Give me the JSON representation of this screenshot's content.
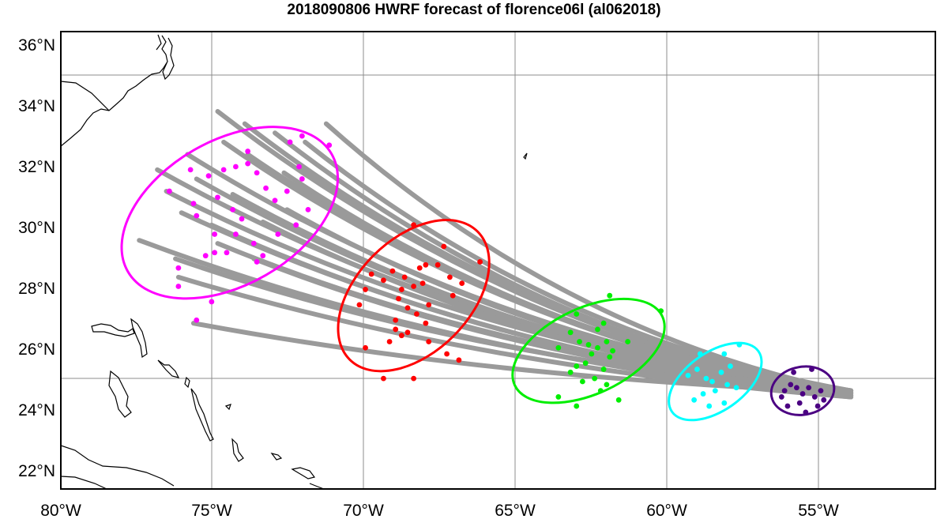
{
  "title": "2018090806 HWRF forecast of florence06l (al062018)",
  "colors": {
    "track": "#9a9a9a",
    "coast": "#000000",
    "grid": "#8c8c8c",
    "groups": [
      "#ff00ff",
      "#ff0000",
      "#00ee00",
      "#00ffff",
      "#4b0082"
    ]
  },
  "chart_data": {
    "type": "scatter",
    "title": "2018090806 HWRF forecast of florence06l (al062018)",
    "x_ticks": [
      "80°W",
      "75°W",
      "70°W",
      "65°W",
      "60°W",
      "55°W"
    ],
    "y_ticks": [
      "36°N",
      "34°N",
      "32°N",
      "30°N",
      "28°N",
      "26°N",
      "24°N",
      "22°N"
    ],
    "xlim": [
      -80,
      -51
    ],
    "ylim": [
      21.6,
      36.5
    ],
    "grid": true,
    "tracks_origin": [
      -53.8,
      24.7
    ],
    "track_ends": [
      [
        -76.5,
        31.3
      ],
      [
        -75.8,
        32.5
      ],
      [
        -74.8,
        33.9
      ],
      [
        -73.9,
        33.5
      ],
      [
        -72.9,
        33.2
      ],
      [
        -71.9,
        32.9
      ],
      [
        -71.2,
        33.5
      ],
      [
        -75.5,
        31.7
      ],
      [
        -76.0,
        30.6
      ],
      [
        -77.4,
        29.7
      ],
      [
        -76.2,
        29.1
      ],
      [
        -75.6,
        27.0
      ],
      [
        -76.8,
        32.0
      ],
      [
        -74.3,
        31.2
      ],
      [
        -73.3,
        30.3
      ],
      [
        -72.5,
        30.7
      ],
      [
        -74.8,
        29.6
      ],
      [
        -73.6,
        29.1
      ],
      [
        -75.0,
        30.2
      ],
      [
        -76.1,
        28.5
      ],
      [
        -72.1,
        32.1
      ],
      [
        -73.8,
        32.5
      ],
      [
        -72.6,
        31.9
      ],
      [
        -74.6,
        32.9
      ]
    ],
    "groups": [
      {
        "center": [
          -74.4,
          30.6
        ],
        "rx_deg": 3.9,
        "ry_deg": 2.35,
        "angle": -30,
        "points": [
          [
            -76.4,
            31.3
          ],
          [
            -75.7,
            32.0
          ],
          [
            -75.1,
            31.8
          ],
          [
            -75.6,
            30.9
          ],
          [
            -75.5,
            30.5
          ],
          [
            -74.8,
            31.1
          ],
          [
            -74.6,
            32.0
          ],
          [
            -74.2,
            32.1
          ],
          [
            -73.8,
            32.2
          ],
          [
            -73.5,
            31.9
          ],
          [
            -73.2,
            31.4
          ],
          [
            -72.9,
            31.0
          ],
          [
            -72.5,
            31.3
          ],
          [
            -72.1,
            32.1
          ],
          [
            -72.0,
            31.7
          ],
          [
            -71.8,
            30.7
          ],
          [
            -72.2,
            30.2
          ],
          [
            -72.8,
            29.9
          ],
          [
            -73.6,
            29.6
          ],
          [
            -73.3,
            29.2
          ],
          [
            -73.5,
            29.0
          ],
          [
            -74.2,
            29.9
          ],
          [
            -74.0,
            30.4
          ],
          [
            -74.5,
            29.3
          ],
          [
            -74.9,
            29.3
          ],
          [
            -75.2,
            29.2
          ],
          [
            -76.1,
            28.8
          ],
          [
            -76.1,
            28.2
          ],
          [
            -75.5,
            27.1
          ],
          [
            -75.0,
            27.7
          ],
          [
            -74.3,
            30.7
          ],
          [
            -74.9,
            29.9
          ],
          [
            -72.4,
            32.9
          ],
          [
            -73.8,
            32.6
          ],
          [
            -72.0,
            33.1
          ],
          [
            -71.1,
            32.8
          ]
        ]
      },
      {
        "center": [
          -68.3,
          27.9
        ],
        "rx_deg": 3.0,
        "ry_deg": 1.85,
        "angle": -45,
        "points": [
          [
            -69.9,
            28.1
          ],
          [
            -69.7,
            28.6
          ],
          [
            -69.3,
            28.4
          ],
          [
            -69.0,
            28.7
          ],
          [
            -68.6,
            28.5
          ],
          [
            -68.7,
            28.1
          ],
          [
            -68.3,
            28.2
          ],
          [
            -68.0,
            28.3
          ],
          [
            -68.1,
            28.8
          ],
          [
            -67.9,
            28.9
          ],
          [
            -67.5,
            28.9
          ],
          [
            -67.1,
            28.5
          ],
          [
            -67.0,
            27.9
          ],
          [
            -66.7,
            28.3
          ],
          [
            -67.3,
            29.5
          ],
          [
            -68.3,
            30.2
          ],
          [
            -66.1,
            29.0
          ],
          [
            -68.8,
            27.8
          ],
          [
            -68.5,
            27.5
          ],
          [
            -68.2,
            27.3
          ],
          [
            -67.8,
            27.6
          ],
          [
            -67.9,
            27.0
          ],
          [
            -68.9,
            26.8
          ],
          [
            -68.7,
            26.6
          ],
          [
            -68.5,
            26.7
          ],
          [
            -69.9,
            26.2
          ],
          [
            -69.1,
            26.4
          ],
          [
            -67.8,
            26.4
          ],
          [
            -67.2,
            26.0
          ],
          [
            -66.8,
            25.8
          ],
          [
            -69.3,
            25.2
          ],
          [
            -68.3,
            25.2
          ],
          [
            -68.9,
            27.1
          ],
          [
            -70.1,
            27.6
          ]
        ]
      },
      {
        "center": [
          -62.5,
          26.1
        ],
        "rx_deg": 2.7,
        "ry_deg": 1.4,
        "angle": -25,
        "points": [
          [
            -63.5,
            26.2
          ],
          [
            -63.1,
            26.7
          ],
          [
            -62.8,
            26.4
          ],
          [
            -62.5,
            26.3
          ],
          [
            -62.2,
            26.2
          ],
          [
            -61.9,
            26.4
          ],
          [
            -61.7,
            26.1
          ],
          [
            -62.4,
            26.0
          ],
          [
            -62.9,
            25.6
          ],
          [
            -62.6,
            25.7
          ],
          [
            -62.0,
            25.5
          ],
          [
            -61.8,
            25.9
          ],
          [
            -63.1,
            25.4
          ],
          [
            -62.7,
            25.1
          ],
          [
            -62.3,
            25.2
          ],
          [
            -61.9,
            25.0
          ],
          [
            -63.5,
            24.6
          ],
          [
            -62.9,
            24.3
          ],
          [
            -62.1,
            24.8
          ],
          [
            -61.5,
            24.5
          ],
          [
            -62.9,
            27.3
          ],
          [
            -62.2,
            26.8
          ],
          [
            -62.0,
            27.0
          ],
          [
            -61.8,
            27.9
          ],
          [
            -60.1,
            27.4
          ],
          [
            -61.2,
            26.4
          ]
        ]
      },
      {
        "center": [
          -58.3,
          25.1
        ],
        "rx_deg": 1.75,
        "ry_deg": 0.95,
        "angle": -35,
        "points": [
          [
            -59.2,
            25.3
          ],
          [
            -58.9,
            25.5
          ],
          [
            -58.6,
            25.2
          ],
          [
            -58.4,
            25.1
          ],
          [
            -58.1,
            25.4
          ],
          [
            -57.9,
            25.0
          ],
          [
            -57.8,
            25.6
          ],
          [
            -58.3,
            24.8
          ],
          [
            -58.7,
            24.7
          ],
          [
            -59.0,
            24.5
          ],
          [
            -58.5,
            24.3
          ],
          [
            -58.0,
            24.4
          ],
          [
            -57.6,
            24.9
          ],
          [
            -57.5,
            26.3
          ],
          [
            -58.0,
            26.0
          ],
          [
            -58.8,
            26.0
          ]
        ]
      },
      {
        "center": [
          -55.4,
          24.8
        ],
        "rx_deg": 1.05,
        "ry_deg": 0.78,
        "angle": -10,
        "points": [
          [
            -56.0,
            24.8
          ],
          [
            -55.8,
            25.0
          ],
          [
            -55.6,
            24.9
          ],
          [
            -55.4,
            24.7
          ],
          [
            -55.2,
            24.9
          ],
          [
            -55.0,
            24.6
          ],
          [
            -54.8,
            24.8
          ],
          [
            -55.5,
            24.4
          ],
          [
            -55.9,
            24.3
          ],
          [
            -55.3,
            24.1
          ],
          [
            -54.9,
            24.3
          ],
          [
            -55.7,
            25.4
          ],
          [
            -55.1,
            25.5
          ],
          [
            -54.7,
            24.5
          ],
          [
            -56.1,
            24.6
          ]
        ]
      }
    ]
  }
}
